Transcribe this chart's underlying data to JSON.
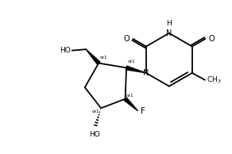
{
  "bg_color": "#ffffff",
  "line_color": "#000000",
  "line_width": 1.3,
  "font_size": 6.5,
  "figsize": [
    2.92,
    1.94
  ],
  "dpi": 100,
  "xlim": [
    0,
    10
  ],
  "ylim": [
    0,
    6.5
  ]
}
